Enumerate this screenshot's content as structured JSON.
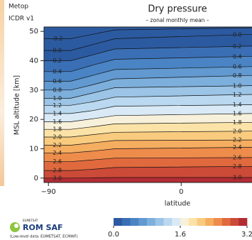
{
  "header": {
    "mission": "Metop",
    "product": "ICDR v1"
  },
  "chart_data": {
    "type": "contour",
    "title": "Dry pressure",
    "subtitle": "– zonal monthly mean –",
    "x_label": "latitude",
    "y_label": "MSL altitude [km]",
    "xlim": [
      -93,
      48
    ],
    "xticks": [
      {
        "value": -90,
        "label": "−90"
      },
      0
    ],
    "ylim": [
      -1.5,
      51.5
    ],
    "yticks": [
      0,
      10,
      20,
      30,
      40,
      50
    ],
    "x": [
      -93,
      -75,
      -60,
      -45,
      48
    ],
    "contours": [
      {
        "level": {
          "value": -0.2,
          "label": "-0.2"
        },
        "altitude": [
          47.5,
          47.5,
          49,
          50.5,
          51.2
        ]
      },
      {
        "level": {
          "value": 0,
          "label": "0.0"
        },
        "altitude": [
          43.5,
          43.5,
          45.5,
          47.5,
          49
        ]
      },
      {
        "level": {
          "value": 0.2,
          "label": "0.2"
        },
        "altitude": [
          40,
          40,
          42,
          44,
          45
        ]
      },
      {
        "level": {
          "value": 0.4,
          "label": "0.4"
        },
        "altitude": [
          36.3,
          36.3,
          38.5,
          40.5,
          41.5
        ]
      },
      {
        "level": {
          "value": 0.6,
          "label": "0.6"
        },
        "altitude": [
          33,
          33,
          35,
          37,
          38
        ]
      },
      {
        "level": {
          "value": 0.8,
          "label": "0.8"
        },
        "altitude": [
          30,
          30,
          31.8,
          33.8,
          35
        ]
      },
      {
        "level": {
          "value": 1,
          "label": "1.0"
        },
        "altitude": [
          27.2,
          27.2,
          29,
          30.8,
          31.5
        ]
      },
      {
        "level": {
          "value": 1.2,
          "label": "1.2"
        },
        "altitude": [
          24.8,
          24.8,
          26,
          27.6,
          28.5
        ]
      },
      {
        "level": {
          "value": 1.4,
          "label": "1.4"
        },
        "altitude": [
          22,
          22,
          23,
          24.5,
          25
        ]
      },
      {
        "level": {
          "value": 1.6,
          "label": "1.6"
        },
        "altitude": [
          19.2,
          19.2,
          20.2,
          21.3,
          22
        ]
      },
      {
        "level": {
          "value": 1.8,
          "label": "1.8"
        },
        "altitude": [
          16.6,
          16.6,
          17.5,
          18.5,
          19
        ]
      },
      {
        "level": {
          "value": 2,
          "label": "2.0"
        },
        "altitude": [
          14,
          14,
          14.8,
          15.6,
          16
        ]
      },
      {
        "level": {
          "value": 2.2,
          "label": "2.2"
        },
        "altitude": [
          11.2,
          11.2,
          12,
          12.8,
          13
        ]
      },
      {
        "level": {
          "value": 2.4,
          "label": "2.4"
        },
        "altitude": [
          8.6,
          8.6,
          9.2,
          10,
          10.5
        ]
      },
      {
        "level": {
          "value": 2.6,
          "label": "2.6"
        },
        "altitude": [
          5.6,
          5.6,
          6.2,
          6.8,
          7
        ]
      },
      {
        "level": {
          "value": 2.8,
          "label": "2.8"
        },
        "altitude": [
          2.6,
          2.6,
          3,
          3.6,
          4
        ]
      },
      {
        "level": {
          "value": 3,
          "label": "3.0"
        },
        "altitude": [
          0,
          0,
          0.1,
          0.2,
          0.2
        ]
      }
    ],
    "colorbar": {
      "lim": [
        0,
        3.2
      ],
      "ticks": [
        {
          "value": 0,
          "label": "0.0"
        },
        1.6,
        3.2
      ],
      "colors": [
        "#2c5aa0",
        "#3a6fb5",
        "#4a84c4",
        "#6199d0",
        "#7dafdc",
        "#9bc4e6",
        "#bad8ef",
        "#d9eaf6",
        "#f7f1dc",
        "#fbe3a8",
        "#f9cb7e",
        "#f5ad60",
        "#ee8c4c",
        "#e06a3e",
        "#cc4a38",
        "#b22c34"
      ]
    }
  },
  "footer": {
    "agency": "EUMETSAT",
    "logo": "ROM SAF",
    "note": "(Low-level data: EUMETSAT, ECMWF)"
  }
}
